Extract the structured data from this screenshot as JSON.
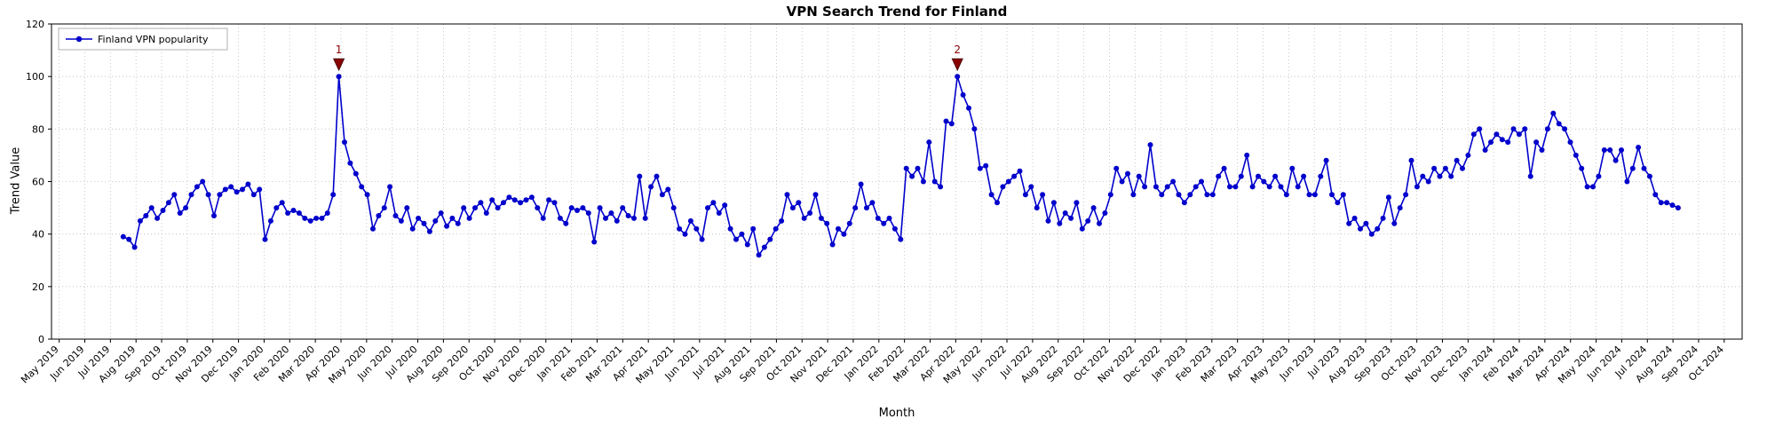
{
  "chart_data": {
    "type": "line",
    "title": "VPN Search Trend for Finland",
    "xlabel": "Month",
    "ylabel": "Trend Value",
    "ylim": [
      0,
      120
    ],
    "yticks": [
      0,
      20,
      40,
      60,
      80,
      100,
      120
    ],
    "grid": "dotted",
    "legend_position": "upper-left",
    "line_color": "#0000cc",
    "annotation_color": "#8b0000",
    "x_tick_labels": [
      "May 2019",
      "Jun 2019",
      "Jul 2019",
      "Aug 2019",
      "Sep 2019",
      "Oct 2019",
      "Nov 2019",
      "Dec 2019",
      "Jan 2020",
      "Feb 2020",
      "Mar 2020",
      "Apr 2020",
      "May 2020",
      "Jun 2020",
      "Jul 2020",
      "Aug 2020",
      "Sep 2020",
      "Oct 2020",
      "Nov 2020",
      "Dec 2020",
      "Jan 2021",
      "Feb 2021",
      "Mar 2021",
      "Apr 2021",
      "May 2021",
      "Jun 2021",
      "Jul 2021",
      "Aug 2021",
      "Sep 2021",
      "Oct 2021",
      "Nov 2021",
      "Dec 2021",
      "Jan 2022",
      "Feb 2022",
      "Mar 2022",
      "Apr 2022",
      "May 2022",
      "Jun 2022",
      "Jul 2022",
      "Aug 2022",
      "Sep 2022",
      "Oct 2022",
      "Nov 2022",
      "Dec 2022",
      "Jan 2023",
      "Feb 2023",
      "Mar 2023",
      "Apr 2023",
      "May 2023",
      "Jun 2023",
      "Jul 2023",
      "Aug 2023",
      "Sep 2023",
      "Oct 2023",
      "Nov 2023",
      "Dec 2023",
      "Jan 2024",
      "Feb 2024",
      "Mar 2024",
      "Apr 2024",
      "May 2024",
      "Jun 2024",
      "Jul 2024",
      "Aug 2024",
      "Sep 2024",
      "Oct 2024"
    ],
    "x_start_month_index": 2.5,
    "x_end_month_index": 63.2,
    "series": [
      {
        "name": "Finland VPN popularity",
        "values": [
          39,
          38,
          35,
          45,
          47,
          50,
          46,
          49,
          52,
          55,
          48,
          50,
          55,
          58,
          60,
          55,
          47,
          55,
          57,
          58,
          56,
          57,
          59,
          55,
          57,
          38,
          45,
          50,
          52,
          48,
          49,
          48,
          46,
          45,
          46,
          46,
          48,
          55,
          100,
          75,
          67,
          63,
          58,
          55,
          42,
          47,
          50,
          58,
          47,
          45,
          50,
          42,
          46,
          44,
          41,
          45,
          48,
          43,
          46,
          44,
          50,
          46,
          50,
          52,
          48,
          53,
          50,
          52,
          54,
          53,
          52,
          53,
          54,
          50,
          46,
          53,
          52,
          46,
          44,
          50,
          49,
          50,
          48,
          37,
          50,
          46,
          48,
          45,
          50,
          47,
          46,
          62,
          46,
          58,
          62,
          55,
          57,
          50,
          42,
          40,
          45,
          42,
          38,
          50,
          52,
          48,
          51,
          42,
          38,
          40,
          36,
          42,
          32,
          35,
          38,
          42,
          45,
          55,
          50,
          52,
          46,
          48,
          55,
          46,
          44,
          36,
          42,
          40,
          44,
          50,
          59,
          50,
          52,
          46,
          44,
          46,
          42,
          38,
          65,
          62,
          65,
          60,
          75,
          60,
          58,
          83,
          82,
          100,
          93,
          88,
          80,
          65,
          66,
          55,
          52,
          58,
          60,
          62,
          64,
          55,
          58,
          50,
          55,
          45,
          52,
          44,
          48,
          46,
          52,
          42,
          45,
          50,
          44,
          48,
          55,
          65,
          60,
          63,
          55,
          62,
          58,
          74,
          58,
          55,
          58,
          60,
          55,
          52,
          55,
          58,
          60,
          55,
          55,
          62,
          65,
          58,
          58,
          62,
          70,
          58,
          62,
          60,
          58,
          62,
          58,
          55,
          65,
          58,
          62,
          55,
          55,
          62,
          68,
          55,
          52,
          55,
          44,
          46,
          42,
          44,
          40,
          42,
          46,
          54,
          44,
          50,
          55,
          68,
          58,
          62,
          60,
          65,
          62,
          65,
          62,
          68,
          65,
          70,
          78,
          80,
          72,
          75,
          78,
          76,
          75,
          80,
          78,
          80,
          62,
          75,
          72,
          80,
          86,
          82,
          80,
          75,
          70,
          65,
          58,
          58,
          62,
          72,
          72,
          68,
          72,
          60,
          65,
          73,
          65,
          62,
          55,
          52,
          52,
          51,
          50
        ]
      }
    ],
    "annotations": [
      {
        "label": "1",
        "point_index": 38,
        "value": 100
      },
      {
        "label": "2",
        "point_index": 147,
        "value": 100
      }
    ]
  }
}
